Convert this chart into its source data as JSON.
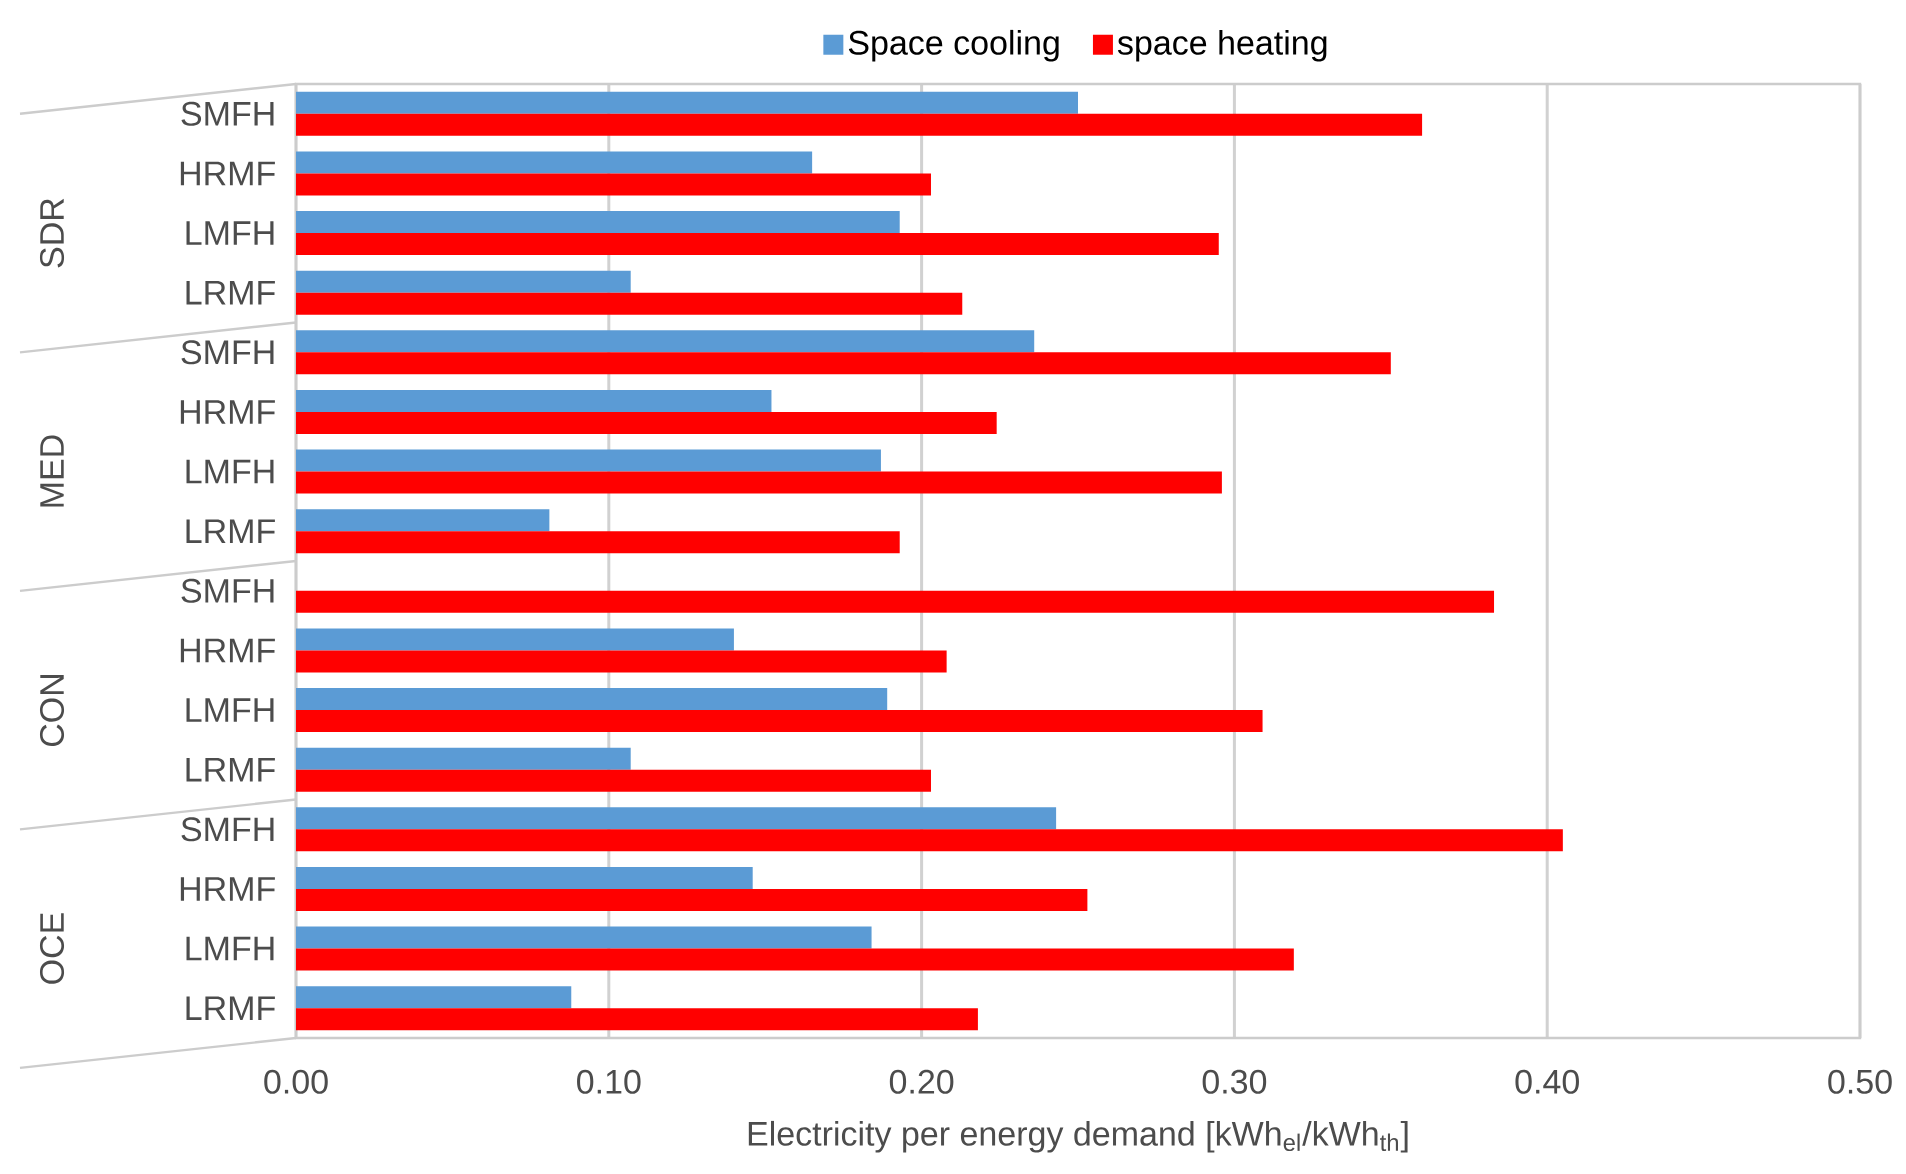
{
  "chart_data": {
    "type": "bar",
    "orientation": "horizontal",
    "xlabel": "Electricity per energy demand [kWh$_{el}$/kWh$_{th}$]",
    "categories": [
      "SMFH",
      "HRMF",
      "LMFH",
      "LRMF",
      "SMFH",
      "HRMF",
      "LMFH",
      "LRMF",
      "SMFH",
      "HRMF",
      "LMFH",
      "LRMF",
      "SMFH",
      "HRMF",
      "LMFH",
      "LRMF"
    ],
    "annotations": [
      "SDR",
      "MED",
      "CON",
      "OCE"
    ],
    "series": [
      {
        "name": "Space cooling",
        "color": "#5b9bd5",
        "values": [
          0.25,
          0.165,
          0.193,
          0.107,
          0.236,
          0.152,
          0.187,
          0.081,
          null,
          0.14,
          0.189,
          0.107,
          0.243,
          0.146,
          0.184,
          0.088
        ]
      },
      {
        "name": "space heating",
        "color": "#ff0000",
        "values": [
          0.36,
          0.203,
          0.295,
          0.213,
          0.35,
          0.224,
          0.296,
          0.193,
          0.383,
          0.208,
          0.309,
          0.203,
          0.405,
          0.253,
          0.319,
          0.218
        ]
      }
    ],
    "xlim": [
      0,
      0.5
    ],
    "xticks": [
      {
        "value": 0,
        "label": "0.00"
      },
      {
        "value": 0.1,
        "label": "0.10"
      },
      {
        "value": 0.2,
        "label": "0.20"
      },
      {
        "value": 0.3,
        "label": "0.30"
      },
      {
        "value": 0.4,
        "label": "0.40"
      },
      {
        "value": 0.5,
        "label": "0.50"
      }
    ],
    "grid": "x",
    "legend": "top"
  }
}
